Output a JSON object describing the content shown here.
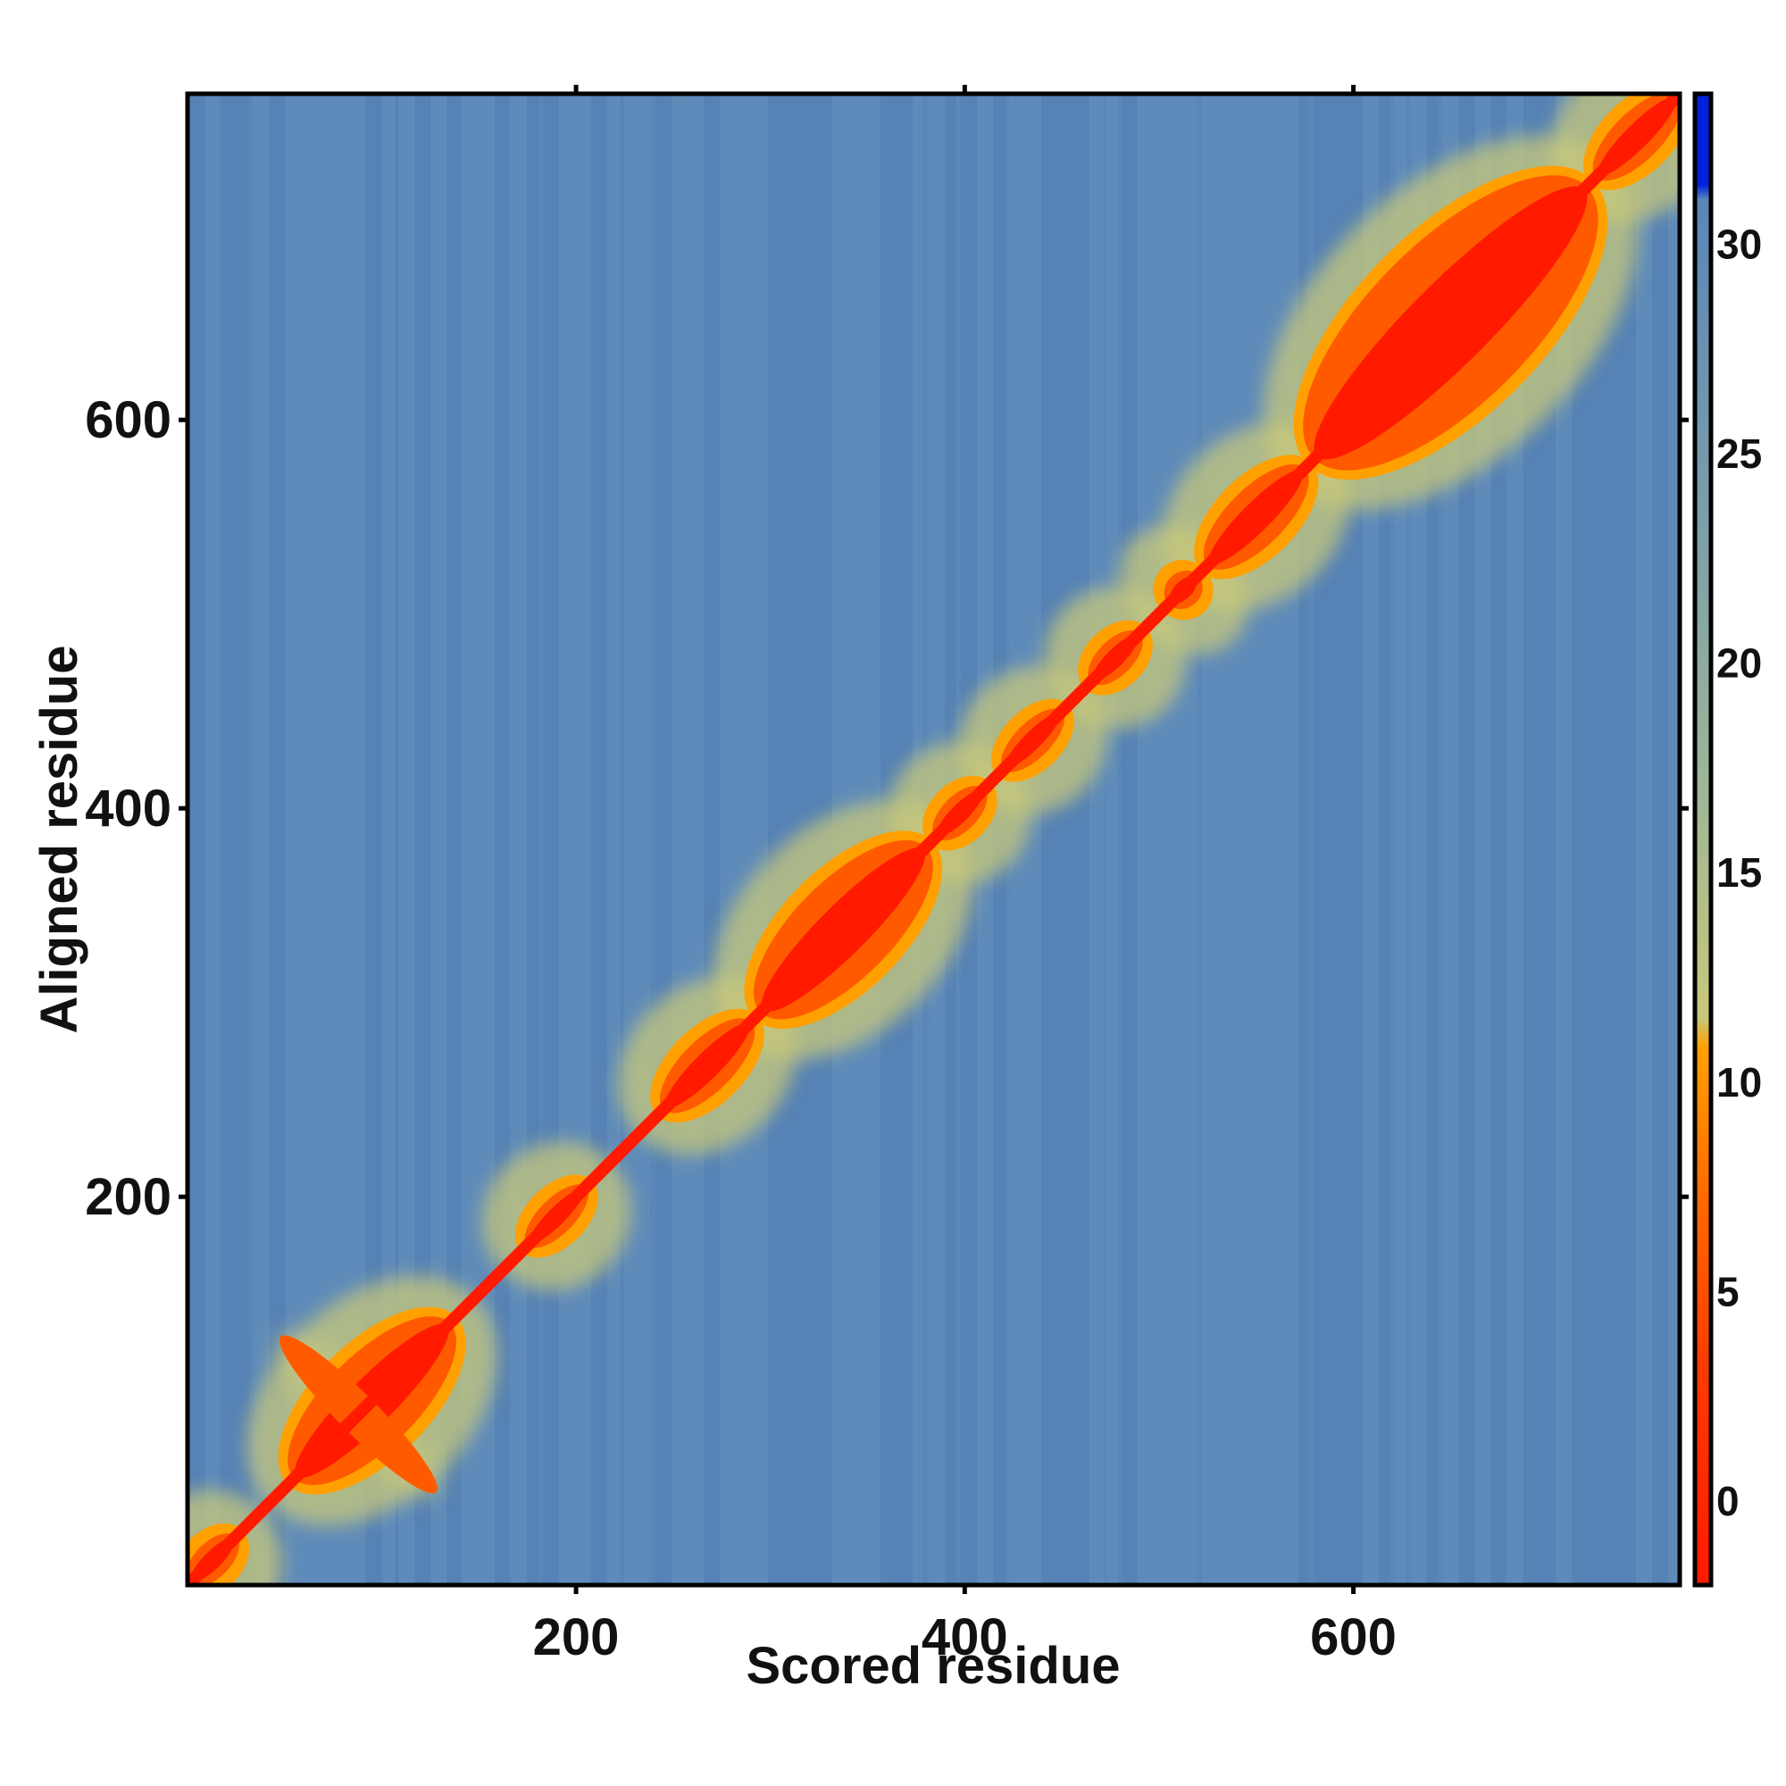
{
  "chart_data": {
    "type": "heatmap",
    "title": "",
    "xlabel": "Scored residue",
    "ylabel": "Aligned residue",
    "xlim": [
      1,
      767
    ],
    "ylim": [
      1,
      767
    ],
    "x_ticks": [
      200,
      400,
      600
    ],
    "y_ticks": [
      200,
      400,
      600
    ],
    "grid": false,
    "colorbar": {
      "ticks": [
        0,
        5,
        10,
        15,
        20,
        25,
        30
      ],
      "range": [
        -2,
        33.5
      ],
      "colors": {
        "low": "#ff1a00",
        "mid_low": "#ff5a00",
        "mid": "#ffa000",
        "mid_high": "#c8c87a",
        "high": "#5a86b8",
        "cap": "#0022dd"
      }
    },
    "diagonal_domains": [
      {
        "start": 1,
        "end": 25,
        "value": 3
      },
      {
        "start": 55,
        "end": 135,
        "value": 3
      },
      {
        "start": 175,
        "end": 205,
        "value": 2
      },
      {
        "start": 245,
        "end": 290,
        "value": 3
      },
      {
        "start": 295,
        "end": 380,
        "value": 3
      },
      {
        "start": 385,
        "end": 410,
        "value": 2
      },
      {
        "start": 420,
        "end": 450,
        "value": 4
      },
      {
        "start": 465,
        "end": 490,
        "value": 2
      },
      {
        "start": 505,
        "end": 520,
        "value": 3
      },
      {
        "start": 525,
        "end": 575,
        "value": 3
      },
      {
        "start": 580,
        "end": 720,
        "value": 3
      },
      {
        "start": 725,
        "end": 767,
        "value": 2
      }
    ],
    "cross_pattern": {
      "center": 88,
      "half_width": 40,
      "value": 5
    }
  }
}
